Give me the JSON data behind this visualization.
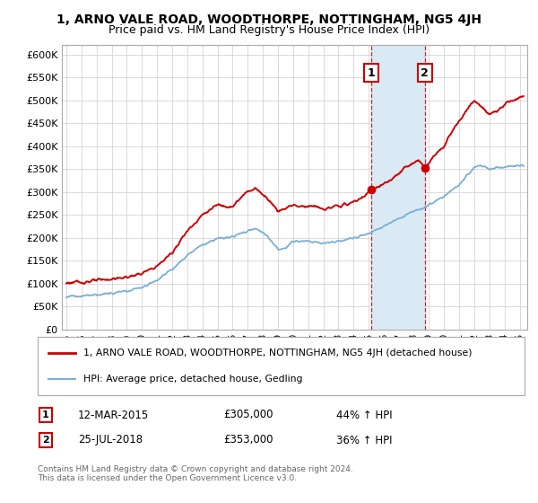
{
  "title": "1, ARNO VALE ROAD, WOODTHORPE, NOTTINGHAM, NG5 4JH",
  "subtitle": "Price paid vs. HM Land Registry's House Price Index (HPI)",
  "ylim": [
    0,
    620000
  ],
  "yticks": [
    0,
    50000,
    100000,
    150000,
    200000,
    250000,
    300000,
    350000,
    400000,
    450000,
    500000,
    550000,
    600000
  ],
  "ytick_labels": [
    "£0",
    "£50K",
    "£100K",
    "£150K",
    "£200K",
    "£250K",
    "£300K",
    "£350K",
    "£400K",
    "£450K",
    "£500K",
    "£550K",
    "£600K"
  ],
  "xlim_start": 1994.7,
  "xlim_end": 2025.5,
  "purchase1_x": 2015.19,
  "purchase1_y": 305000,
  "purchase2_x": 2018.72,
  "purchase2_y": 353000,
  "line_color_red": "#cc0000",
  "line_color_blue": "#7ab0d4",
  "shade_color": "#daeaf5",
  "dashed_color": "#cc0000",
  "legend_line1": "1, ARNO VALE ROAD, WOODTHORPE, NOTTINGHAM, NG5 4JH (detached house)",
  "legend_line2": "HPI: Average price, detached house, Gedling",
  "footnote": "Contains HM Land Registry data © Crown copyright and database right 2024.\nThis data is licensed under the Open Government Licence v3.0.",
  "bg_color": "#ffffff",
  "grid_color": "#cccccc",
  "red_kp_x": [
    1995,
    1996,
    1997,
    1998,
    1999,
    2000,
    2001,
    2002,
    2003,
    2004,
    2005,
    2006,
    2007,
    2007.5,
    2008,
    2008.5,
    2009,
    2009.5,
    2010,
    2010.5,
    2011,
    2011.5,
    2012,
    2012.5,
    2013,
    2013.5,
    2014,
    2014.5,
    2015.19,
    2015.5,
    2016,
    2016.5,
    2017,
    2017.5,
    2018,
    2018.3,
    2018.72,
    2019,
    2019.5,
    2020,
    2020.5,
    2021,
    2021.5,
    2022,
    2022.3,
    2022.6,
    2023,
    2023.5,
    2024,
    2024.5,
    2025.25
  ],
  "red_kp_y": [
    102000,
    103000,
    107000,
    110000,
    114000,
    122000,
    138000,
    168000,
    215000,
    250000,
    272000,
    268000,
    302000,
    308000,
    295000,
    280000,
    258000,
    265000,
    272000,
    268000,
    270000,
    268000,
    262000,
    265000,
    270000,
    272000,
    278000,
    286000,
    305000,
    310000,
    318000,
    325000,
    340000,
    355000,
    362000,
    370000,
    353000,
    365000,
    385000,
    400000,
    430000,
    455000,
    478000,
    500000,
    490000,
    480000,
    470000,
    475000,
    495000,
    500000,
    510000
  ],
  "blue_kp_x": [
    1995,
    1996,
    1997,
    1998,
    1999,
    2000,
    2001,
    2002,
    2003,
    2004,
    2005,
    2006,
    2007,
    2007.5,
    2008,
    2008.5,
    2009,
    2009.5,
    2010,
    2011,
    2012,
    2013,
    2014,
    2015,
    2016,
    2017,
    2018,
    2018.72,
    2019,
    2020,
    2021,
    2022,
    2022.5,
    2023,
    2024,
    2025.25
  ],
  "blue_kp_y": [
    72000,
    73000,
    76000,
    79000,
    84000,
    92000,
    108000,
    132000,
    162000,
    185000,
    198000,
    202000,
    215000,
    220000,
    212000,
    195000,
    175000,
    178000,
    192000,
    193000,
    188000,
    192000,
    200000,
    208000,
    226000,
    242000,
    258000,
    265000,
    272000,
    290000,
    315000,
    355000,
    358000,
    350000,
    355000,
    358000
  ]
}
